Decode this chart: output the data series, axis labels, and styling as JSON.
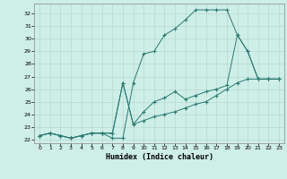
{
  "xlabel": "Humidex (Indice chaleur)",
  "bg_color": "#ceeee8",
  "grid_color": "#b8d8d2",
  "line_color": "#2a7a70",
  "xlim": [
    -0.5,
    23.5
  ],
  "ylim": [
    21.7,
    32.8
  ],
  "xticks": [
    0,
    1,
    2,
    3,
    4,
    5,
    6,
    7,
    8,
    9,
    10,
    11,
    12,
    13,
    14,
    15,
    16,
    17,
    18,
    19,
    20,
    21,
    22,
    23
  ],
  "yticks": [
    22,
    23,
    24,
    25,
    26,
    27,
    28,
    29,
    30,
    31,
    32
  ],
  "s1_x": [
    0,
    1,
    2,
    3,
    4,
    5,
    6,
    7,
    8,
    9,
    10,
    11,
    12,
    13,
    14,
    15,
    16,
    17,
    18,
    19,
    20,
    21,
    22,
    23
  ],
  "s1_y": [
    22.3,
    22.5,
    22.3,
    22.1,
    22.3,
    22.5,
    22.5,
    22.1,
    22.1,
    26.5,
    28.8,
    29.0,
    30.3,
    30.8,
    31.5,
    32.3,
    32.3,
    32.3,
    32.3,
    30.3,
    29.0,
    26.8,
    26.8,
    26.8
  ],
  "s2_x": [
    0,
    1,
    2,
    3,
    4,
    5,
    6,
    7,
    8,
    9,
    10,
    11,
    12,
    13,
    14,
    15,
    16,
    17,
    18,
    19,
    20,
    21,
    22,
    23
  ],
  "s2_y": [
    22.3,
    22.5,
    22.3,
    22.1,
    22.3,
    22.5,
    22.5,
    22.5,
    26.5,
    23.2,
    24.2,
    25.0,
    25.3,
    25.8,
    25.2,
    25.5,
    25.8,
    26.0,
    26.3,
    30.3,
    29.0,
    26.8,
    26.8,
    26.8
  ],
  "s3_x": [
    0,
    1,
    2,
    3,
    4,
    5,
    6,
    7,
    8,
    9,
    10,
    11,
    12,
    13,
    14,
    15,
    16,
    17,
    18,
    19,
    20,
    21,
    22,
    23
  ],
  "s3_y": [
    22.3,
    22.5,
    22.3,
    22.1,
    22.3,
    22.5,
    22.5,
    22.5,
    26.5,
    23.2,
    23.5,
    23.8,
    24.0,
    24.2,
    24.5,
    24.8,
    25.0,
    25.5,
    26.0,
    26.5,
    26.8,
    26.8,
    26.8,
    26.8
  ],
  "xlabel_fontsize": 6,
  "tick_fontsize": 4.5
}
